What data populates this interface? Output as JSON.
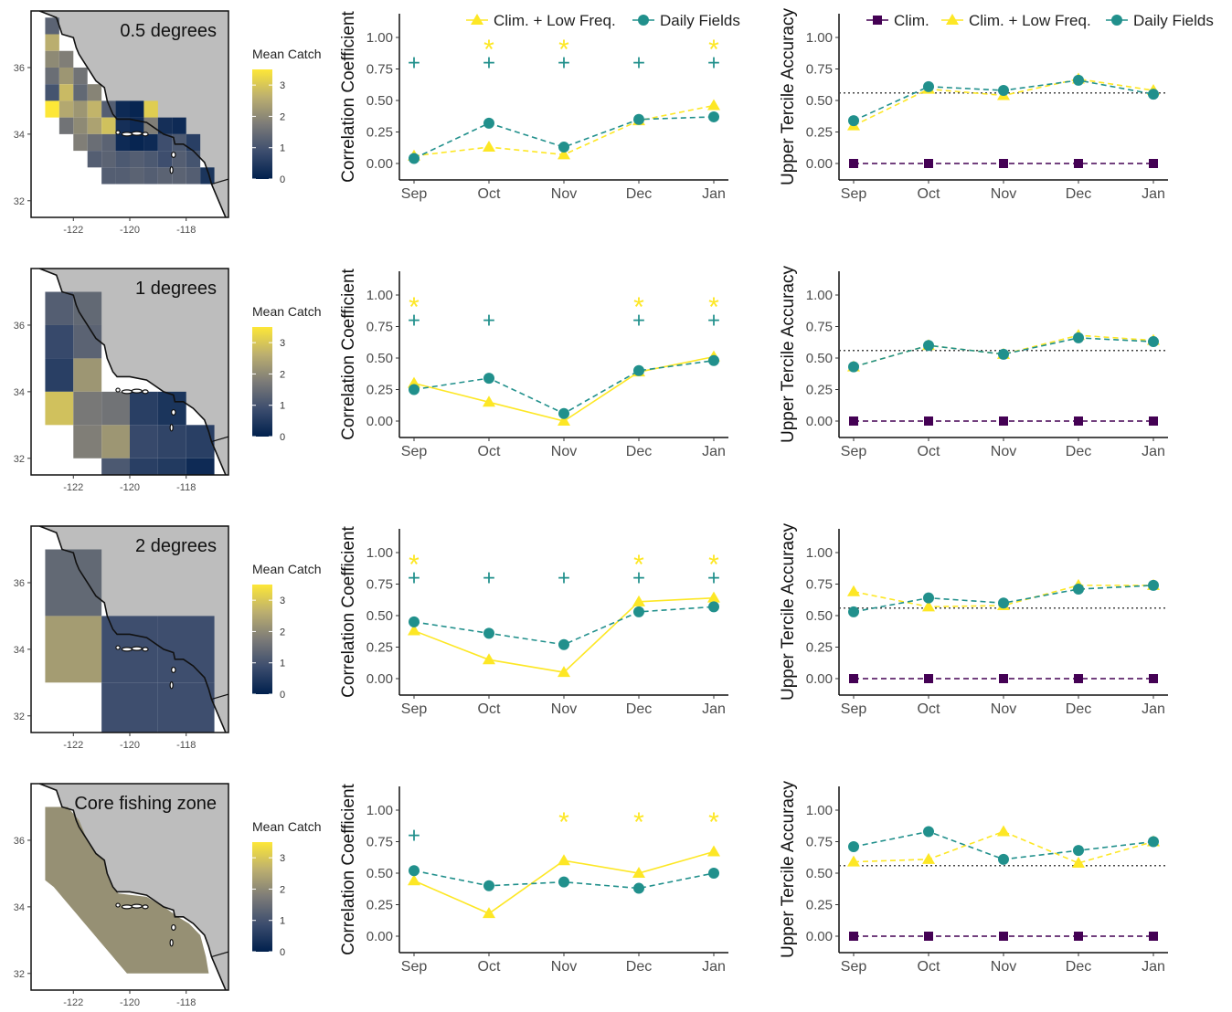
{
  "months": [
    "Sep",
    "Oct",
    "Nov",
    "Dec",
    "Jan"
  ],
  "colors": {
    "clim": "#440154",
    "low": "#fde725",
    "daily": "#21908c",
    "land": "#bdbdbd",
    "axis": "#000000",
    "dotted": "#444444"
  },
  "legend_corr": {
    "low": "Clim. + Low Freq.",
    "daily": "Daily Fields"
  },
  "legend_tercile": {
    "clim": "Clim.",
    "low": "Clim. + Low Freq.",
    "daily": "Daily Fields"
  },
  "maps": {
    "x_ticks": [
      "-122",
      "-120",
      "-118"
    ],
    "y_ticks": [
      "32",
      "34",
      "36"
    ],
    "colorbar_title": "Mean Catch",
    "colorbar_ticks": [
      "0",
      "1",
      "2",
      "3"
    ]
  },
  "chart_data": [
    {
      "type": "map_heatmap",
      "title": "0.5 degrees",
      "resolution_deg": 0.5,
      "colorbar_range": [
        0,
        3.5
      ],
      "cells": [
        {
          "lon": -122.75,
          "lat": 37.25,
          "v": 1.3
        },
        {
          "lon": -122.75,
          "lat": 36.75,
          "v": 2.6
        },
        {
          "lon": -122.75,
          "lat": 36.25,
          "v": 2.0
        },
        {
          "lon": -122.25,
          "lat": 36.25,
          "v": 1.8
        },
        {
          "lon": -122.75,
          "lat": 35.75,
          "v": 1.5
        },
        {
          "lon": -122.25,
          "lat": 35.75,
          "v": 2.2
        },
        {
          "lon": -121.75,
          "lat": 35.75,
          "v": 1.6
        },
        {
          "lon": -122.75,
          "lat": 35.25,
          "v": 1.0
        },
        {
          "lon": -122.25,
          "lat": 35.25,
          "v": 2.8
        },
        {
          "lon": -121.75,
          "lat": 35.25,
          "v": 1.4
        },
        {
          "lon": -121.25,
          "lat": 35.25,
          "v": 1.9
        },
        {
          "lon": -122.75,
          "lat": 34.75,
          "v": 3.5
        },
        {
          "lon": -122.25,
          "lat": 34.75,
          "v": 2.5
        },
        {
          "lon": -121.75,
          "lat": 34.75,
          "v": 2.2
        },
        {
          "lon": -121.25,
          "lat": 34.75,
          "v": 2.7
        },
        {
          "lon": -120.75,
          "lat": 34.75,
          "v": 1.2
        },
        {
          "lon": -120.25,
          "lat": 34.75,
          "v": 0.2
        },
        {
          "lon": -119.75,
          "lat": 34.75,
          "v": 0.1
        },
        {
          "lon": -119.25,
          "lat": 34.75,
          "v": 3.1
        },
        {
          "lon": -122.25,
          "lat": 34.25,
          "v": 1.6
        },
        {
          "lon": -121.75,
          "lat": 34.25,
          "v": 2.0
        },
        {
          "lon": -121.25,
          "lat": 34.25,
          "v": 2.4
        },
        {
          "lon": -120.75,
          "lat": 34.25,
          "v": 2.9
        },
        {
          "lon": -120.25,
          "lat": 34.25,
          "v": 0.3
        },
        {
          "lon": -119.75,
          "lat": 34.25,
          "v": 0.2
        },
        {
          "lon": -119.25,
          "lat": 34.25,
          "v": 1.8
        },
        {
          "lon": -118.75,
          "lat": 34.25,
          "v": 0.3
        },
        {
          "lon": -118.25,
          "lat": 34.25,
          "v": 0.2
        },
        {
          "lon": -121.75,
          "lat": 33.75,
          "v": 1.8
        },
        {
          "lon": -121.25,
          "lat": 33.75,
          "v": 1.5
        },
        {
          "lon": -120.75,
          "lat": 33.75,
          "v": 1.3
        },
        {
          "lon": -120.25,
          "lat": 33.75,
          "v": 0.2
        },
        {
          "lon": -119.75,
          "lat": 33.75,
          "v": 0.1
        },
        {
          "lon": -119.25,
          "lat": 33.75,
          "v": 0.2
        },
        {
          "lon": -118.75,
          "lat": 33.75,
          "v": 0.9
        },
        {
          "lon": -118.25,
          "lat": 33.75,
          "v": 1.1
        },
        {
          "lon": -117.75,
          "lat": 33.75,
          "v": 0.6
        },
        {
          "lon": -121.25,
          "lat": 33.25,
          "v": 1.2
        },
        {
          "lon": -120.75,
          "lat": 33.25,
          "v": 1.3
        },
        {
          "lon": -120.25,
          "lat": 33.25,
          "v": 1.1
        },
        {
          "lon": -119.75,
          "lat": 33.25,
          "v": 1.2
        },
        {
          "lon": -119.25,
          "lat": 33.25,
          "v": 1.1
        },
        {
          "lon": -118.75,
          "lat": 33.25,
          "v": 0.9
        },
        {
          "lon": -118.25,
          "lat": 33.25,
          "v": 1.2
        },
        {
          "lon": -117.75,
          "lat": 33.25,
          "v": 1.0
        },
        {
          "lon": -120.75,
          "lat": 32.75,
          "v": 1.2
        },
        {
          "lon": -120.25,
          "lat": 32.75,
          "v": 1.2
        },
        {
          "lon": -119.75,
          "lat": 32.75,
          "v": 1.3
        },
        {
          "lon": -119.25,
          "lat": 32.75,
          "v": 1.2
        },
        {
          "lon": -118.75,
          "lat": 32.75,
          "v": 1.3
        },
        {
          "lon": -118.25,
          "lat": 32.75,
          "v": 1.3
        },
        {
          "lon": -117.75,
          "lat": 32.75,
          "v": 1.2
        },
        {
          "lon": -117.25,
          "lat": 32.75,
          "v": 0.4
        }
      ]
    },
    {
      "type": "line",
      "ylabel": "Correlation Coefficient",
      "ylim": [
        0,
        1
      ],
      "y_ticks": [
        "0.00",
        "0.25",
        "0.50",
        "0.75",
        "1.00"
      ],
      "series": [
        {
          "key": "low",
          "values": [
            0.06,
            0.13,
            0.07,
            0.34,
            0.46
          ],
          "dash": true
        },
        {
          "key": "daily",
          "values": [
            0.04,
            0.32,
            0.13,
            0.35,
            0.37
          ],
          "dash": true
        }
      ],
      "marks": {
        "star": [
          false,
          true,
          true,
          false,
          true
        ],
        "plus": [
          true,
          true,
          true,
          true,
          true
        ]
      }
    },
    {
      "type": "line",
      "ylabel": "Upper Tercile Accuracy",
      "ylim": [
        0,
        1
      ],
      "y_ticks": [
        "0.00",
        "0.25",
        "0.50",
        "0.75",
        "1.00"
      ],
      "reference_line": 0.56,
      "series": [
        {
          "key": "clim",
          "values": [
            0,
            0,
            0,
            0,
            0
          ],
          "dash": true
        },
        {
          "key": "low",
          "values": [
            0.3,
            0.59,
            0.54,
            0.67,
            0.58
          ],
          "dash": true
        },
        {
          "key": "daily",
          "values": [
            0.34,
            0.61,
            0.58,
            0.66,
            0.55
          ],
          "dash": true
        }
      ]
    },
    {
      "type": "map_heatmap",
      "title": "1 degrees",
      "resolution_deg": 1,
      "colorbar_range": [
        0,
        3.5
      ],
      "cells": [
        {
          "lon": -122.5,
          "lat": 36.5,
          "v": 1.2
        },
        {
          "lon": -121.5,
          "lat": 36.5,
          "v": 1.4
        },
        {
          "lon": -122.5,
          "lat": 35.5,
          "v": 0.8
        },
        {
          "lon": -121.5,
          "lat": 35.5,
          "v": 1.3
        },
        {
          "lon": -122.5,
          "lat": 34.5,
          "v": 0.6
        },
        {
          "lon": -121.5,
          "lat": 34.5,
          "v": 2.2
        },
        {
          "lon": -122.5,
          "lat": 33.5,
          "v": 2.9
        },
        {
          "lon": -121.5,
          "lat": 33.5,
          "v": 1.7
        },
        {
          "lon": -120.5,
          "lat": 33.5,
          "v": 1.6
        },
        {
          "lon": -119.5,
          "lat": 33.5,
          "v": 0.6
        },
        {
          "lon": -118.5,
          "lat": 33.5,
          "v": 0.4
        },
        {
          "lon": -121.5,
          "lat": 32.5,
          "v": 1.8
        },
        {
          "lon": -120.5,
          "lat": 32.5,
          "v": 2.2
        },
        {
          "lon": -119.5,
          "lat": 32.5,
          "v": 0.8
        },
        {
          "lon": -118.5,
          "lat": 32.5,
          "v": 0.7
        },
        {
          "lon": -117.5,
          "lat": 32.5,
          "v": 0.6
        },
        {
          "lon": -120.5,
          "lat": 31.5,
          "v": 1.1
        },
        {
          "lon": -119.5,
          "lat": 31.5,
          "v": 0.6
        },
        {
          "lon": -118.5,
          "lat": 31.5,
          "v": 0.5
        },
        {
          "lon": -117.5,
          "lat": 31.5,
          "v": 0.2
        }
      ]
    },
    {
      "type": "line",
      "ylabel": "Correlation Coefficient",
      "ylim": [
        0,
        1
      ],
      "y_ticks": [
        "0.00",
        "0.25",
        "0.50",
        "0.75",
        "1.00"
      ],
      "series": [
        {
          "key": "low",
          "values": [
            0.3,
            0.15,
            0.0,
            0.39,
            0.51
          ],
          "dash": false
        },
        {
          "key": "daily",
          "values": [
            0.25,
            0.34,
            0.06,
            0.4,
            0.48
          ],
          "dash": true
        }
      ],
      "marks": {
        "star": [
          true,
          false,
          false,
          true,
          true
        ],
        "plus": [
          true,
          true,
          false,
          true,
          true
        ]
      }
    },
    {
      "type": "line",
      "ylabel": "Upper Tercile Accuracy",
      "ylim": [
        0,
        1
      ],
      "y_ticks": [
        "0.00",
        "0.25",
        "0.50",
        "0.75",
        "1.00"
      ],
      "reference_line": 0.56,
      "series": [
        {
          "key": "clim",
          "values": [
            0,
            0,
            0,
            0,
            0
          ],
          "dash": true
        },
        {
          "key": "low",
          "values": [
            0.43,
            0.6,
            0.53,
            0.68,
            0.64
          ],
          "dash": true
        },
        {
          "key": "daily",
          "values": [
            0.43,
            0.6,
            0.53,
            0.66,
            0.63
          ],
          "dash": true
        }
      ]
    },
    {
      "type": "map_heatmap",
      "title": "2 degrees",
      "resolution_deg": 2,
      "colorbar_range": [
        0,
        3.5
      ],
      "cells": [
        {
          "lon": -122,
          "lat": 36,
          "v": 1.4
        },
        {
          "lon": -122,
          "lat": 34,
          "v": 2.3
        },
        {
          "lon": -120,
          "lat": 34,
          "v": 0.9
        },
        {
          "lon": -118,
          "lat": 34,
          "v": 0.9
        },
        {
          "lon": -120,
          "lat": 32,
          "v": 0.9
        },
        {
          "lon": -118,
          "lat": 32,
          "v": 0.9
        }
      ]
    },
    {
      "type": "line",
      "ylabel": "Correlation Coefficient",
      "ylim": [
        0,
        1
      ],
      "y_ticks": [
        "0.00",
        "0.25",
        "0.50",
        "0.75",
        "1.00"
      ],
      "series": [
        {
          "key": "low",
          "values": [
            0.38,
            0.15,
            0.05,
            0.61,
            0.64
          ],
          "dash": false
        },
        {
          "key": "daily",
          "values": [
            0.45,
            0.36,
            0.27,
            0.53,
            0.57
          ],
          "dash": true
        }
      ],
      "marks": {
        "star": [
          true,
          false,
          false,
          true,
          true
        ],
        "plus": [
          true,
          true,
          true,
          true,
          true
        ]
      }
    },
    {
      "type": "line",
      "ylabel": "Upper Tercile Accuracy",
      "ylim": [
        0,
        1
      ],
      "y_ticks": [
        "0.00",
        "0.25",
        "0.50",
        "0.75",
        "1.00"
      ],
      "reference_line": 0.56,
      "series": [
        {
          "key": "clim",
          "values": [
            0,
            0,
            0,
            0,
            0
          ],
          "dash": true
        },
        {
          "key": "low",
          "values": [
            0.69,
            0.57,
            0.58,
            0.74,
            0.74
          ],
          "dash": true
        },
        {
          "key": "daily",
          "values": [
            0.53,
            0.64,
            0.6,
            0.71,
            0.74
          ],
          "dash": true
        }
      ]
    },
    {
      "type": "map_heatmap",
      "title": "Core fishing zone",
      "colorbar_range": [
        0,
        3.5
      ],
      "zone_value": 2.1
    },
    {
      "type": "line",
      "ylabel": "Correlation Coefficient",
      "ylim": [
        0,
        1
      ],
      "y_ticks": [
        "0.00",
        "0.25",
        "0.50",
        "0.75",
        "1.00"
      ],
      "series": [
        {
          "key": "low",
          "values": [
            0.44,
            0.18,
            0.6,
            0.5,
            0.67
          ],
          "dash": false
        },
        {
          "key": "daily",
          "values": [
            0.52,
            0.4,
            0.43,
            0.38,
            0.5
          ],
          "dash": true
        }
      ],
      "marks": {
        "star": [
          false,
          false,
          true,
          true,
          true
        ],
        "plus": [
          true,
          false,
          false,
          false,
          false
        ]
      }
    },
    {
      "type": "line",
      "ylabel": "Upper Tercile Accuracy",
      "ylim": [
        0,
        1
      ],
      "y_ticks": [
        "0.00",
        "0.25",
        "0.50",
        "0.75",
        "1.00"
      ],
      "reference_line": 0.56,
      "series": [
        {
          "key": "clim",
          "values": [
            0,
            0,
            0,
            0,
            0
          ],
          "dash": true
        },
        {
          "key": "low",
          "values": [
            0.59,
            0.61,
            0.83,
            0.58,
            0.75
          ],
          "dash": true
        },
        {
          "key": "daily",
          "values": [
            0.71,
            0.83,
            0.61,
            0.68,
            0.75
          ],
          "dash": true
        }
      ]
    }
  ]
}
